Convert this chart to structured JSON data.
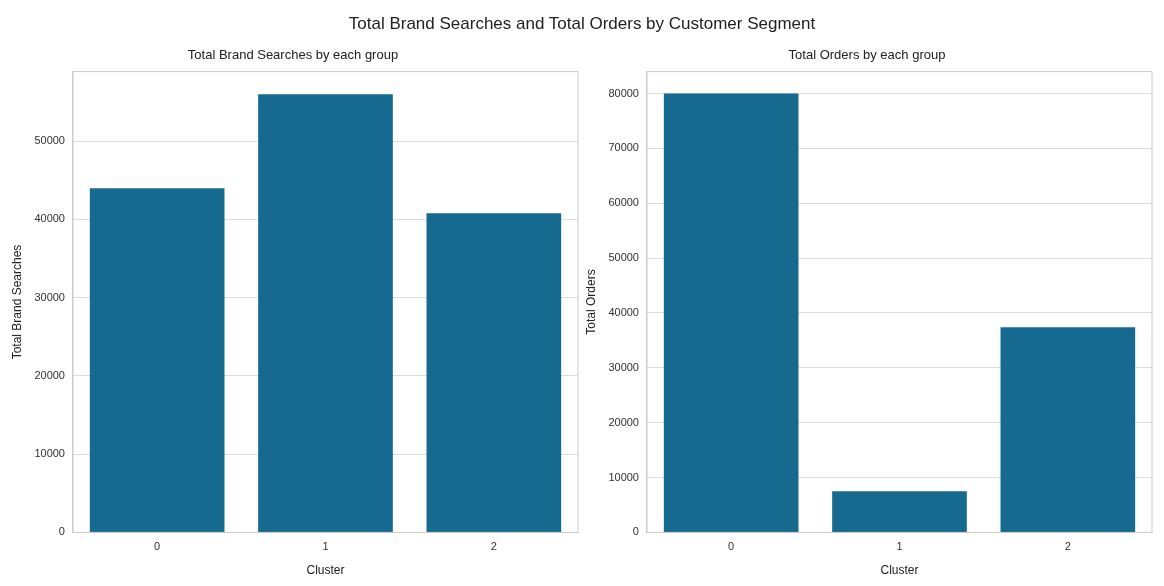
{
  "chart_data": [
    {
      "type": "bar",
      "title": "Total Brand Searches by each group",
      "annotations": [
        "Total Brand Searches and Total Orders by Customer Segment"
      ],
      "xlabel": "Cluster",
      "ylabel": "Total Brand Searches",
      "categories": [
        "0",
        "1",
        "2"
      ],
      "values": [
        44000,
        56000,
        40800
      ],
      "color": "#176a8f",
      "ylim": [
        0,
        58900
      ],
      "yticks": [
        0,
        10000,
        20000,
        30000,
        40000,
        50000
      ],
      "grid": "y"
    },
    {
      "type": "bar",
      "title": "Total Orders by each group",
      "xlabel": "Cluster",
      "ylabel": "Total Orders",
      "categories": [
        "0",
        "1",
        "2"
      ],
      "values": [
        80000,
        7500,
        37400
      ],
      "color": "#176a8f",
      "ylim": [
        0,
        84000
      ],
      "yticks": [
        0,
        10000,
        20000,
        30000,
        40000,
        50000,
        60000,
        70000,
        80000
      ],
      "grid": "y"
    }
  ]
}
